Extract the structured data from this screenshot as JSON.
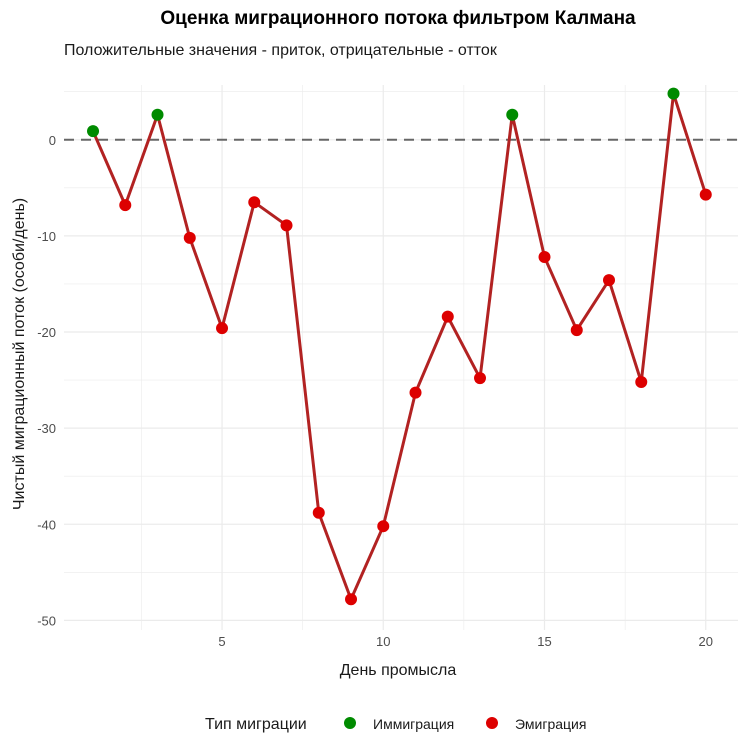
{
  "chart_data": {
    "type": "line",
    "title": "Оценка миграционного потока фильтром Калмана",
    "subtitle": "Положительные значения - приток, отрицательные - отток",
    "xlabel": "День промысла",
    "ylabel": "Чистый миграционный поток (особи/день)",
    "x": [
      1,
      2,
      3,
      4,
      5,
      6,
      7,
      8,
      9,
      10,
      11,
      12,
      13,
      14,
      15,
      16,
      17,
      18,
      19,
      20
    ],
    "values": [
      0.9,
      -6.8,
      2.6,
      -10.2,
      -19.6,
      -6.5,
      -8.9,
      -38.8,
      -47.8,
      -40.2,
      -26.3,
      -18.4,
      -24.8,
      2.6,
      -12.2,
      -19.8,
      -14.6,
      -25.2,
      4.8,
      -5.7
    ],
    "xticks": [
      "5",
      "10",
      "15",
      "20"
    ],
    "xtick_values": [
      5,
      10,
      15,
      20
    ],
    "yticks": [
      "0",
      "-10",
      "-20",
      "-30",
      "-40",
      "-50"
    ],
    "ytick_values": [
      0,
      -10,
      -20,
      -30,
      -40,
      -50
    ],
    "xlim": [
      0.1,
      21
    ],
    "ylim": [
      -51,
      5.7
    ],
    "reference_line": 0,
    "grid": true,
    "line_color": "#B22222",
    "legend": {
      "title": "Тип миграции",
      "placement": "bottom",
      "entries": [
        {
          "label": "Иммиграция",
          "color": "#008B00"
        },
        {
          "label": "Эмиграция",
          "color": "#DD0000"
        }
      ]
    }
  }
}
